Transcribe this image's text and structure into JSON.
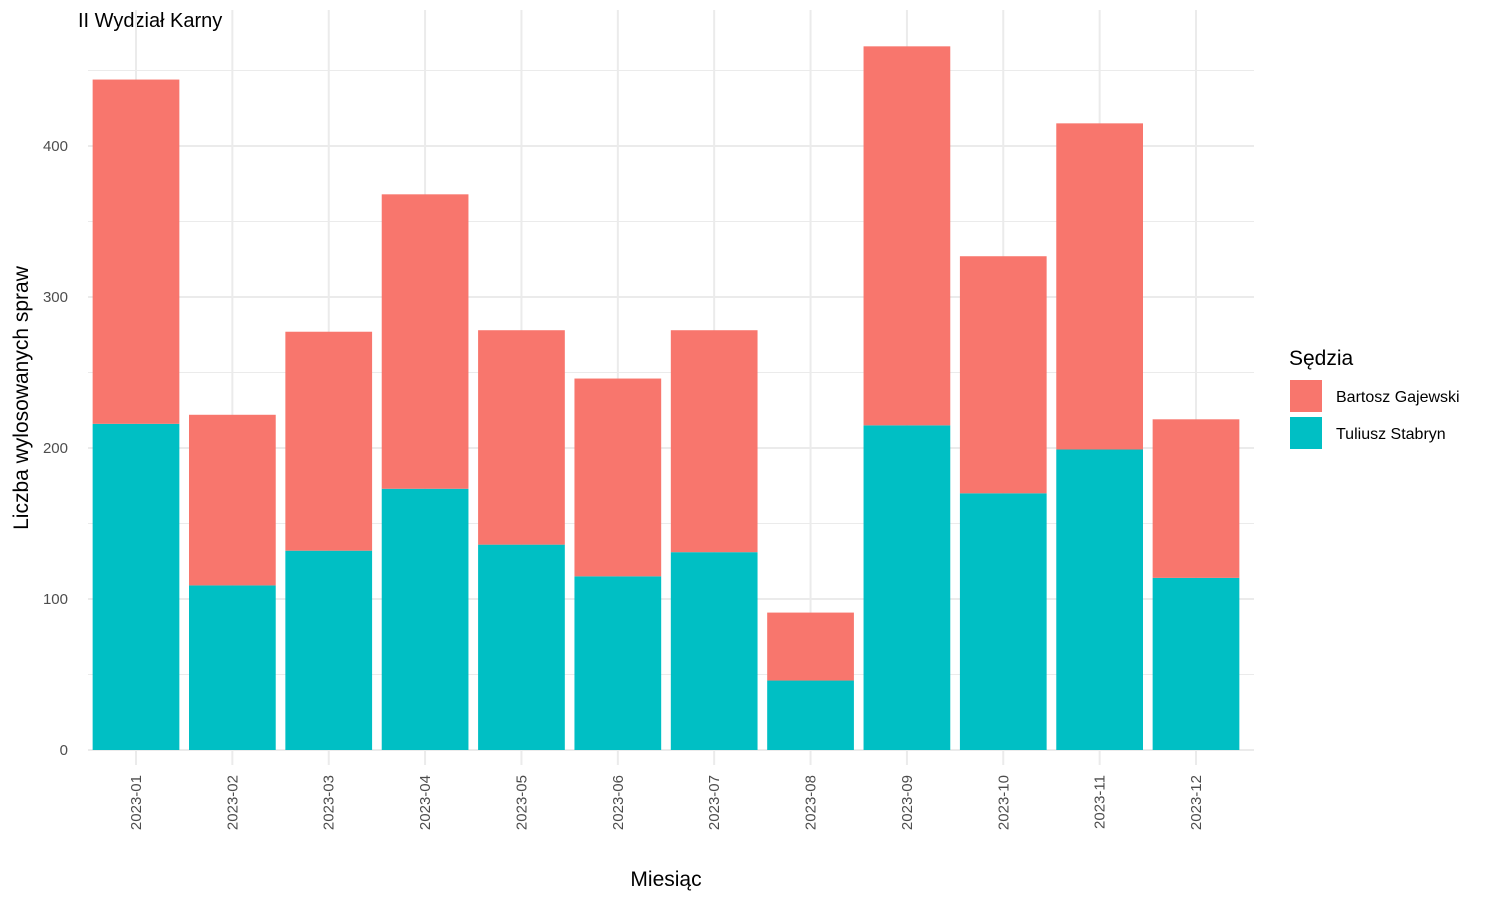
{
  "chart_data": {
    "type": "bar",
    "stacked": true,
    "title": "II Wydział Karny",
    "xlabel": "Miesiąc",
    "ylabel": "Liczba wylosowanych spraw",
    "categories": [
      "2023-01",
      "2023-02",
      "2023-03",
      "2023-04",
      "2023-05",
      "2023-06",
      "2023-07",
      "2023-08",
      "2023-09",
      "2023-10",
      "2023-11",
      "2023-12"
    ],
    "series": [
      {
        "name": "Tuliusz Stabryn",
        "color": "#00BFC4",
        "values": [
          216,
          109,
          132,
          173,
          136,
          115,
          131,
          46,
          215,
          170,
          199,
          114
        ]
      },
      {
        "name": "Bartosz Gajewski",
        "color": "#F8766D",
        "values": [
          228,
          113,
          145,
          195,
          142,
          131,
          147,
          45,
          251,
          157,
          216,
          105
        ]
      }
    ],
    "legend_title": "Sędzia",
    "legend_order": [
      "Bartosz Gajewski",
      "Tuliusz Stabryn"
    ],
    "legend_position": "right",
    "yticks": [
      0,
      100,
      200,
      300,
      400
    ],
    "ylim": [
      0,
      490
    ],
    "grid": true
  }
}
